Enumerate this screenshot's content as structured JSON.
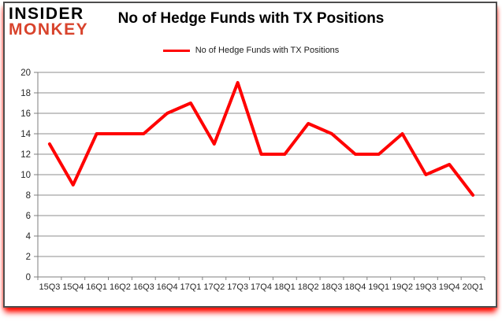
{
  "logo": {
    "line1": "INSIDER",
    "line2": "MONKEY",
    "color_primary": "#000000",
    "color_secondary": "#d8432c"
  },
  "title": "No of Hedge Funds with TX Positions",
  "legend": {
    "label": "No of Hedge Funds with TX Positions",
    "swatch_color": "#ff0000"
  },
  "colors": {
    "line": "#ff0000",
    "grid": "#8c8c8c",
    "axis": "#7f7f7f",
    "tick_text": "#262626",
    "frame_border": "#4d4d4d",
    "bottom_glow": "#ff0000",
    "background": "#ffffff"
  },
  "chart_data": {
    "type": "line",
    "title": "No of Hedge Funds with TX Positions",
    "categories": [
      "15Q3",
      "15Q4",
      "16Q1",
      "16Q2",
      "16Q3",
      "16Q4",
      "17Q1",
      "17Q2",
      "17Q3",
      "17Q4",
      "18Q1",
      "18Q2",
      "18Q3",
      "18Q4",
      "19Q1",
      "19Q2",
      "19Q3",
      "19Q4",
      "20Q1"
    ],
    "series": [
      {
        "name": "No of Hedge Funds with TX Positions",
        "color": "#ff0000",
        "values": [
          13,
          9,
          14,
          14,
          14,
          16,
          17,
          13,
          19,
          12,
          12,
          15,
          14,
          12,
          12,
          14,
          10,
          11,
          8
        ]
      }
    ],
    "xlabel": "",
    "ylabel": "",
    "ylim": [
      0,
      20
    ],
    "yticks": [
      0,
      2,
      4,
      6,
      8,
      10,
      12,
      14,
      16,
      18,
      20
    ],
    "grid": true,
    "legend_position": "top-center"
  }
}
